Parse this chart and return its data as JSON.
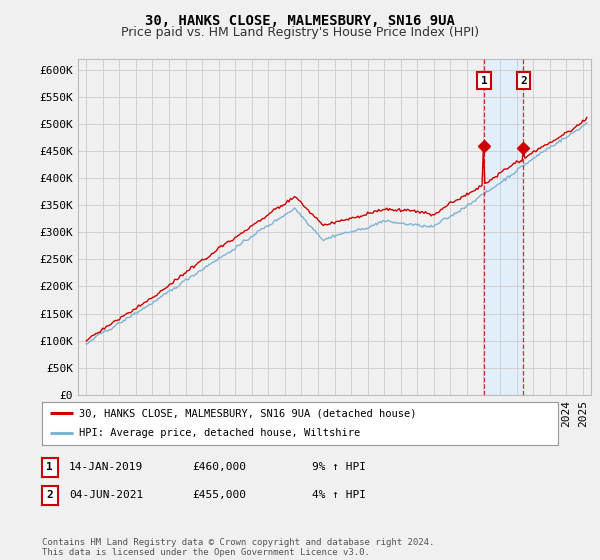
{
  "title": "30, HANKS CLOSE, MALMESBURY, SN16 9UA",
  "subtitle": "Price paid vs. HM Land Registry's House Price Index (HPI)",
  "ylabel_ticks": [
    "£0",
    "£50K",
    "£100K",
    "£150K",
    "£200K",
    "£250K",
    "£300K",
    "£350K",
    "£400K",
    "£450K",
    "£500K",
    "£550K",
    "£600K"
  ],
  "ytick_values": [
    0,
    50000,
    100000,
    150000,
    200000,
    250000,
    300000,
    350000,
    400000,
    450000,
    500000,
    550000,
    600000
  ],
  "ylim": [
    0,
    620000
  ],
  "xlim_start": 1994.5,
  "xlim_end": 2025.5,
  "red_line_color": "#cc0000",
  "blue_line_color": "#7fb3d3",
  "shade_color": "#ddeeff",
  "marker1_date": 2019.04,
  "marker1_value": 460000,
  "marker2_date": 2021.42,
  "marker2_value": 455000,
  "legend_red": "30, HANKS CLOSE, MALMESBURY, SN16 9UA (detached house)",
  "legend_blue": "HPI: Average price, detached house, Wiltshire",
  "table_row1": [
    "1",
    "14-JAN-2019",
    "£460,000",
    "9% ↑ HPI"
  ],
  "table_row2": [
    "2",
    "04-JUN-2021",
    "£455,000",
    "4% ↑ HPI"
  ],
  "footer": "Contains HM Land Registry data © Crown copyright and database right 2024.\nThis data is licensed under the Open Government Licence v3.0.",
  "background_color": "#f0f0f0",
  "plot_bg_color": "#f0f0f0",
  "grid_color": "#cccccc",
  "title_fontsize": 10,
  "subtitle_fontsize": 9,
  "tick_fontsize": 8
}
